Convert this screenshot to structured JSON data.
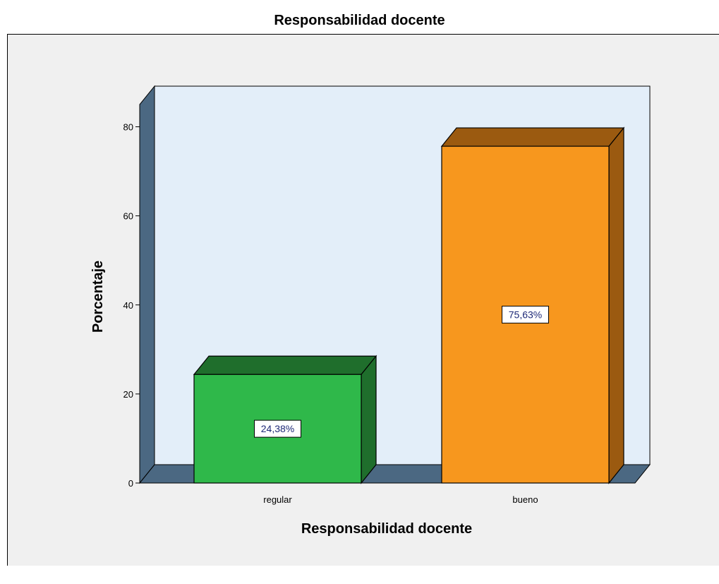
{
  "chart_data": {
    "type": "bar",
    "title": "Responsabilidad docente",
    "xlabel": "Responsabilidad docente",
    "ylabel": "Porcentaje",
    "categories": [
      "regular",
      "bueno"
    ],
    "values": [
      24.38,
      75.63
    ],
    "data_labels": [
      "24,38%",
      "75,63%"
    ],
    "ylim": [
      0,
      85
    ],
    "yticks": [
      0,
      20,
      40,
      60,
      80
    ],
    "three_d": true,
    "grid": false,
    "legend": "none",
    "colors": {
      "bars": [
        "#2fb84a",
        "#f7971e"
      ],
      "bar_sides": [
        "#1f6e2c",
        "#9b5a10"
      ],
      "plot_wall": "#e3eef9",
      "plot_side": "#4b6882",
      "frame_background": "#f0f0f0",
      "data_label_text": "#1f2a78"
    }
  }
}
